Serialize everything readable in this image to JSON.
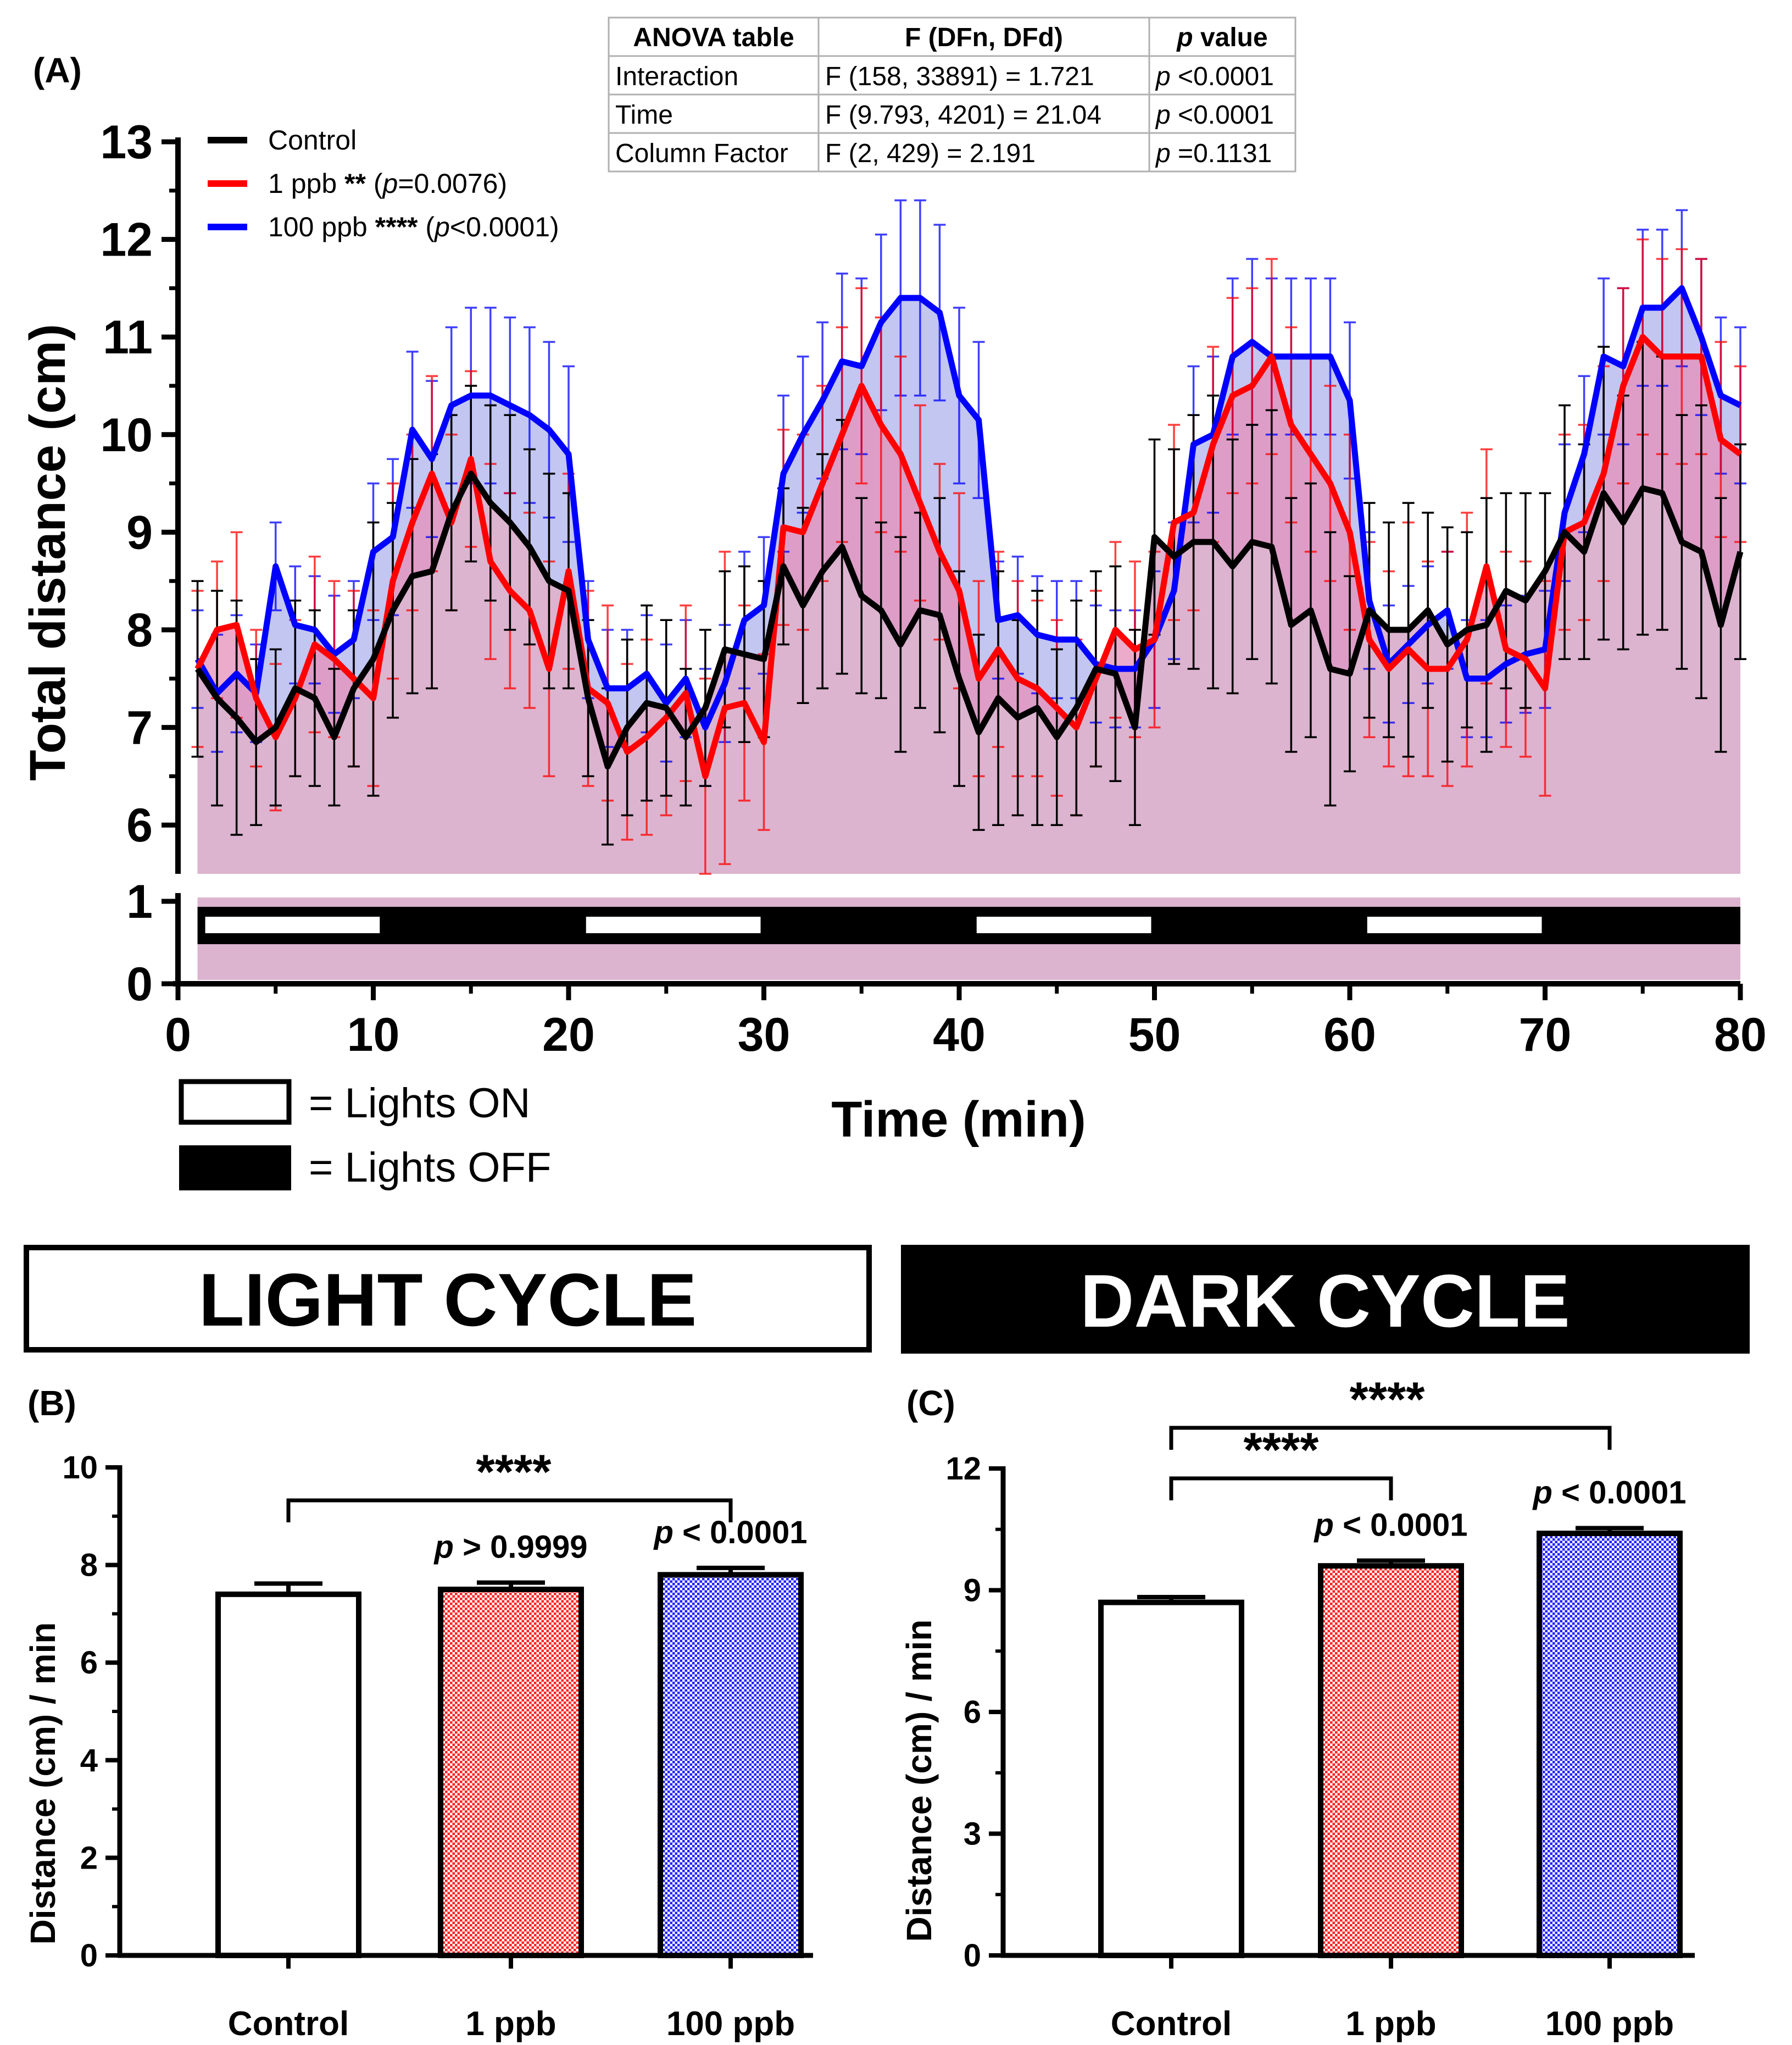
{
  "panel_labels": {
    "A": "(A)",
    "B": "(B)",
    "C": "(C)"
  },
  "anova": {
    "headers": [
      "ANOVA table",
      "F (DFn, DFd)",
      "value"
    ],
    "header_p": "p",
    "rows": [
      {
        "name": "Interaction",
        "f": "F (158, 33891) = 1.721",
        "p_lead": "p",
        "p_rest": " <0.0001"
      },
      {
        "name": "Time",
        "f": "F (9.793, 4201) = 21.04",
        "p_lead": "p",
        "p_rest": " <0.0001"
      },
      {
        "name": "Column Factor",
        "f": "F (2, 429) = 2.191",
        "p_lead": "p",
        "p_rest": " =0.1131"
      }
    ]
  },
  "legend_a": [
    {
      "name": "Control",
      "stars": "",
      "p_open": "",
      "p_lead": "",
      "p_rest": "",
      "p_close": "",
      "color": "#000000"
    },
    {
      "name": "1 ppb",
      "stars": "**",
      "p_open": "(",
      "p_lead": "p",
      "p_rest": "=0.0076",
      "p_close": ")",
      "color": "#ff0000"
    },
    {
      "name": "100 ppb",
      "stars": "****",
      "p_open": "(",
      "p_lead": "p",
      "p_rest": "<0.0001",
      "p_close": ")",
      "color": "#0000ff"
    }
  ],
  "light_key": {
    "on": "= Lights ON",
    "off": "= Lights OFF"
  },
  "cycle_titles": {
    "light": "LIGHT CYCLE",
    "dark": "DARK CYCLE"
  },
  "colors": {
    "control": "#000000",
    "ppb1": "#ff0000",
    "ppb100": "#0000ff",
    "fill_base": "#dcb4cf",
    "fill_blue": "#b7bcee",
    "fill_red": "#e58fb8"
  },
  "chart_data": [
    {
      "id": "A",
      "type": "line",
      "xlabel": "Time (min)",
      "ylabel": "Total distance (cm)",
      "xlim": [
        0,
        80
      ],
      "ylim": [
        5.5,
        13
      ],
      "xticks": [
        "0",
        "10",
        "20",
        "30",
        "40",
        "50",
        "60",
        "70",
        "80"
      ],
      "yticks": [
        "6",
        "7",
        "8",
        "9",
        "10",
        "11",
        "12",
        "13"
      ],
      "x": [
        1,
        2,
        3,
        4,
        5,
        6,
        7,
        8,
        9,
        10,
        11,
        12,
        13,
        14,
        15,
        16,
        17,
        18,
        19,
        20,
        21,
        22,
        23,
        24,
        25,
        26,
        27,
        28,
        29,
        30,
        31,
        32,
        33,
        34,
        35,
        36,
        37,
        38,
        39,
        40,
        41,
        42,
        43,
        44,
        45,
        46,
        47,
        48,
        49,
        50,
        51,
        52,
        53,
        54,
        55,
        56,
        57,
        58,
        59,
        60,
        61,
        62,
        63,
        64,
        65,
        66,
        67,
        68,
        69,
        70,
        71,
        72,
        73,
        74,
        75,
        76,
        77,
        78,
        79,
        80
      ],
      "series": [
        {
          "name": "Control",
          "color": "#000000",
          "values": [
            7.6,
            7.3,
            7.1,
            6.85,
            7.0,
            7.4,
            7.3,
            6.9,
            7.4,
            7.7,
            8.2,
            8.55,
            8.6,
            9.2,
            9.6,
            9.3,
            9.1,
            8.85,
            8.5,
            8.4,
            7.3,
            6.6,
            7.0,
            7.25,
            7.2,
            6.9,
            7.2,
            7.8,
            7.75,
            7.7,
            8.65,
            8.25,
            8.6,
            8.85,
            8.35,
            8.2,
            7.85,
            8.2,
            8.15,
            7.5,
            6.95,
            7.3,
            7.1,
            7.2,
            6.9,
            7.2,
            7.6,
            7.55,
            7.0,
            8.95,
            8.75,
            8.9,
            8.9,
            8.65,
            8.9,
            8.85,
            8.05,
            8.2,
            7.6,
            7.55,
            8.2,
            8.0,
            8.0,
            8.2,
            7.85,
            8.0,
            8.05,
            8.4,
            8.3,
            8.6,
            9.0,
            8.8,
            9.4,
            9.1,
            9.45,
            9.4,
            8.9,
            8.8,
            8.05,
            8.8
          ],
          "error": [
            0.9,
            1.1,
            1.2,
            0.85,
            0.8,
            0.9,
            0.9,
            0.7,
            0.8,
            1.4,
            1.1,
            1.2,
            1.2,
            1.0,
            0.9,
            1.0,
            1.1,
            1.0,
            1.1,
            1.0,
            0.8,
            0.8,
            0.9,
            1.0,
            0.9,
            0.7,
            0.8,
            0.8,
            0.9,
            0.8,
            0.8,
            1.0,
            1.2,
            1.3,
            1.0,
            0.9,
            1.1,
            1.0,
            1.2,
            1.1,
            1.0,
            1.3,
            1.0,
            1.2,
            0.9,
            1.1,
            1.0,
            1.1,
            1.0,
            1.0,
            1.1,
            1.3,
            1.5,
            1.3,
            1.2,
            1.4,
            1.3,
            1.3,
            1.4,
            1.0,
            1.1,
            1.1,
            1.3,
            1.0,
            1.2,
            1.0,
            1.3,
            1.0,
            1.1,
            0.8,
            1.3,
            1.1,
            1.5,
            1.3,
            1.5,
            1.4,
            1.3,
            1.5,
            1.3,
            1.1
          ]
        },
        {
          "name": "1 ppb",
          "color": "#ff0000",
          "values": [
            7.6,
            8.0,
            8.05,
            7.3,
            6.9,
            7.3,
            7.85,
            7.7,
            7.5,
            7.3,
            8.5,
            9.1,
            9.6,
            9.1,
            9.75,
            8.7,
            8.4,
            8.2,
            7.6,
            8.6,
            7.4,
            7.25,
            6.75,
            6.9,
            7.1,
            7.35,
            6.5,
            7.2,
            7.25,
            6.85,
            9.05,
            9.0,
            9.5,
            10.0,
            10.5,
            10.1,
            9.8,
            9.3,
            8.8,
            8.4,
            7.5,
            7.8,
            7.5,
            7.4,
            7.2,
            7.0,
            7.5,
            8.0,
            7.8,
            7.9,
            9.1,
            9.2,
            9.9,
            10.4,
            10.5,
            10.8,
            10.1,
            9.8,
            9.5,
            9.0,
            7.9,
            7.6,
            7.8,
            7.6,
            7.6,
            7.9,
            8.65,
            7.8,
            7.7,
            7.4,
            9.0,
            9.1,
            9.6,
            10.5,
            11.0,
            10.8,
            10.8,
            10.8,
            9.95,
            9.8
          ],
          "error": [
            0.8,
            0.7,
            0.95,
            0.7,
            0.75,
            0.8,
            0.9,
            0.8,
            0.9,
            0.9,
            1.0,
            0.9,
            1.0,
            0.9,
            0.9,
            1.0,
            1.0,
            1.0,
            1.1,
            1.0,
            1.0,
            1.0,
            0.9,
            1.0,
            1.0,
            0.9,
            1.0,
            1.6,
            1.0,
            0.9,
            1.0,
            1.0,
            1.0,
            1.1,
            1.0,
            1.1,
            1.0,
            1.0,
            0.9,
            1.0,
            1.0,
            1.0,
            1.0,
            0.9,
            0.9,
            0.9,
            0.9,
            0.9,
            0.9,
            0.9,
            1.0,
            1.0,
            1.0,
            1.0,
            1.0,
            1.0,
            1.0,
            1.0,
            1.0,
            1.0,
            1.0,
            1.0,
            1.3,
            1.1,
            1.2,
            1.3,
            1.2,
            1.0,
            1.0,
            1.1,
            1.0,
            1.0,
            1.1,
            1.0,
            1.0,
            1.0,
            1.1,
            1.0,
            1.0,
            0.9
          ]
        },
        {
          "name": "100 ppb",
          "color": "#0000ff",
          "values": [
            7.7,
            7.35,
            7.55,
            7.35,
            8.65,
            8.05,
            8.0,
            7.75,
            7.9,
            8.8,
            8.95,
            10.05,
            9.75,
            10.3,
            10.4,
            10.4,
            10.3,
            10.2,
            10.05,
            9.8,
            7.9,
            7.4,
            7.4,
            7.55,
            7.25,
            7.5,
            7.0,
            7.45,
            8.1,
            8.25,
            9.6,
            10.0,
            10.35,
            10.75,
            10.7,
            11.15,
            11.4,
            11.4,
            11.25,
            10.4,
            10.15,
            8.1,
            8.15,
            7.95,
            7.9,
            7.9,
            7.65,
            7.6,
            7.6,
            7.9,
            8.4,
            9.9,
            10.0,
            10.8,
            10.95,
            10.8,
            10.8,
            10.8,
            10.8,
            10.35,
            8.3,
            7.65,
            7.85,
            8.05,
            8.2,
            7.5,
            7.5,
            7.65,
            7.75,
            7.8,
            9.2,
            9.8,
            10.8,
            10.7,
            11.3,
            11.3,
            11.5,
            11.0,
            10.4,
            10.3
          ],
          "error": [
            0.5,
            0.6,
            0.6,
            0.5,
            0.45,
            0.6,
            0.55,
            0.6,
            0.6,
            0.7,
            0.8,
            0.8,
            0.8,
            0.8,
            0.9,
            0.9,
            0.9,
            0.9,
            0.9,
            0.9,
            0.6,
            0.6,
            0.6,
            0.6,
            0.6,
            0.6,
            0.6,
            0.6,
            0.7,
            0.7,
            0.8,
            0.8,
            0.8,
            0.9,
            0.9,
            0.9,
            1.0,
            1.0,
            0.9,
            0.9,
            0.8,
            0.6,
            0.6,
            0.6,
            0.6,
            0.6,
            0.6,
            0.6,
            0.6,
            0.7,
            0.7,
            0.8,
            0.8,
            0.8,
            0.85,
            0.8,
            0.8,
            0.8,
            0.8,
            0.8,
            0.7,
            0.6,
            0.6,
            0.6,
            0.6,
            0.6,
            0.6,
            0.6,
            0.6,
            0.6,
            0.7,
            0.8,
            0.8,
            0.8,
            0.8,
            0.8,
            0.8,
            0.8,
            0.8,
            0.8
          ]
        }
      ]
    },
    {
      "id": "A-lights",
      "type": "bar",
      "yticks": [
        "0",
        "1"
      ],
      "ylim": [
        0,
        1
      ],
      "segments": [
        {
          "state": "on",
          "start": 1,
          "end": 10.5
        },
        {
          "state": "off",
          "start": 10.5,
          "end": 20.5
        },
        {
          "state": "on",
          "start": 20.5,
          "end": 30
        },
        {
          "state": "off",
          "start": 30,
          "end": 40.5
        },
        {
          "state": "on",
          "start": 40.5,
          "end": 50
        },
        {
          "state": "off",
          "start": 50,
          "end": 60.5
        },
        {
          "state": "on",
          "start": 60.5,
          "end": 70
        },
        {
          "state": "off",
          "start": 70,
          "end": 80
        }
      ]
    },
    {
      "id": "B",
      "type": "bar",
      "title": "LIGHT CYCLE",
      "ylabel": "Distance (cm) / min",
      "ylim": [
        0,
        10
      ],
      "yticks": [
        "0",
        "2",
        "4",
        "6",
        "8",
        "10"
      ],
      "categories": [
        "Control",
        "1 ppb",
        "100 ppb"
      ],
      "values": [
        7.4,
        7.5,
        7.8
      ],
      "error": [
        0.22,
        0.14,
        0.14
      ],
      "p_labels": [
        {
          "lead": "",
          "rest": ""
        },
        {
          "lead": "p",
          "rest": " > 0.9999"
        },
        {
          "lead": "p",
          "rest": " < 0.0001"
        }
      ],
      "brackets": [
        {
          "from": 0,
          "to": 2,
          "stars": "****"
        }
      ]
    },
    {
      "id": "C",
      "type": "bar",
      "title": "DARK CYCLE",
      "ylabel": "Distance (cm) / min",
      "ylim": [
        0,
        12
      ],
      "yticks": [
        "0",
        "3",
        "6",
        "9",
        "12"
      ],
      "categories": [
        "Control",
        "1 ppb",
        "100 ppb"
      ],
      "values": [
        8.7,
        9.6,
        10.4
      ],
      "error": [
        0.13,
        0.13,
        0.13
      ],
      "p_labels": [
        {
          "lead": "",
          "rest": ""
        },
        {
          "lead": "p",
          "rest": " < 0.0001"
        },
        {
          "lead": "p",
          "rest": " < 0.0001"
        }
      ],
      "brackets": [
        {
          "from": 0,
          "to": 1,
          "stars": "****"
        },
        {
          "from": 0,
          "to": 2,
          "stars": "****"
        }
      ]
    }
  ]
}
